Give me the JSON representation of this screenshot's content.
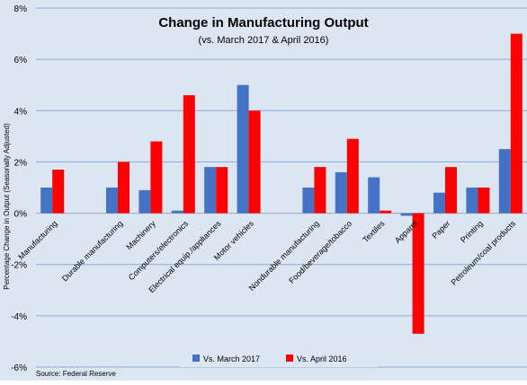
{
  "chart_data": {
    "type": "bar",
    "title": "Change in Manufacturing Output",
    "subtitle": "(vs. March 2017 & April 2016)",
    "ylabel": "Percentage Change in Output (Seasonally Adjusted)",
    "xlabel": "",
    "source": "Source: Federal Reserve",
    "ylim": [
      -6,
      8
    ],
    "yticks": [
      8,
      6,
      4,
      2,
      0,
      -2,
      -4,
      -6
    ],
    "ytick_labels": [
      "8%",
      "6%",
      "4%",
      "2%",
      "0%",
      "-2%",
      "-4%",
      "-6%"
    ],
    "grid": true,
    "legend_position": "bottom-center",
    "categories": [
      "Manufacturing",
      "",
      "Durable manufacturing",
      "Machinery",
      "Computers/electronics",
      "Electrical equip./appliances",
      "Motor vehicles",
      "",
      "Nondurable manufacturing",
      "Food/beverage/tobacco",
      "Textiles",
      "Apparel",
      "Paper",
      "Printing",
      "Petroleum/coal products"
    ],
    "series": [
      {
        "name": "Vs. March 2017",
        "color": "#4472c4",
        "values": [
          1.0,
          null,
          1.0,
          0.9,
          0.1,
          1.8,
          5.0,
          null,
          1.0,
          1.6,
          1.4,
          -0.1,
          0.8,
          1.0,
          2.5
        ]
      },
      {
        "name": "Vs. April 2016",
        "color": "#ff0000",
        "values": [
          1.7,
          null,
          2.0,
          2.8,
          4.6,
          1.8,
          4.0,
          null,
          1.8,
          2.9,
          0.1,
          -4.7,
          1.8,
          1.0,
          7.0
        ]
      }
    ]
  }
}
